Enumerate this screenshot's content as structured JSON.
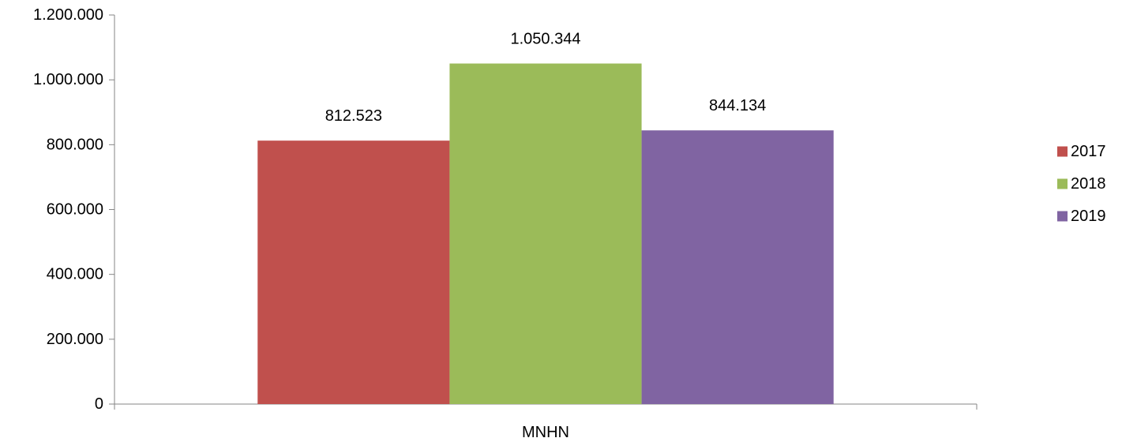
{
  "chart_data": {
    "type": "bar",
    "categories": [
      "MNHN"
    ],
    "series": [
      {
        "name": "2017",
        "values": [
          812523
        ],
        "color": "#C0504D",
        "label": "812.523"
      },
      {
        "name": "2018",
        "values": [
          1050344
        ],
        "color": "#9BBB59",
        "label": "1.050.344"
      },
      {
        "name": "2019",
        "values": [
          844134
        ],
        "color": "#8064A2",
        "label": "844.134"
      }
    ],
    "ylim": [
      0,
      1200000
    ],
    "yticks": [
      0,
      200000,
      400000,
      600000,
      800000,
      1000000,
      1200000
    ],
    "ytick_labels": [
      "0",
      "200.000",
      "400.000",
      "600.000",
      "800.000",
      "1.000.000",
      "1.200.000"
    ],
    "title": "",
    "xlabel": "",
    "ylabel": "",
    "grid": false,
    "legend_position": "right"
  }
}
